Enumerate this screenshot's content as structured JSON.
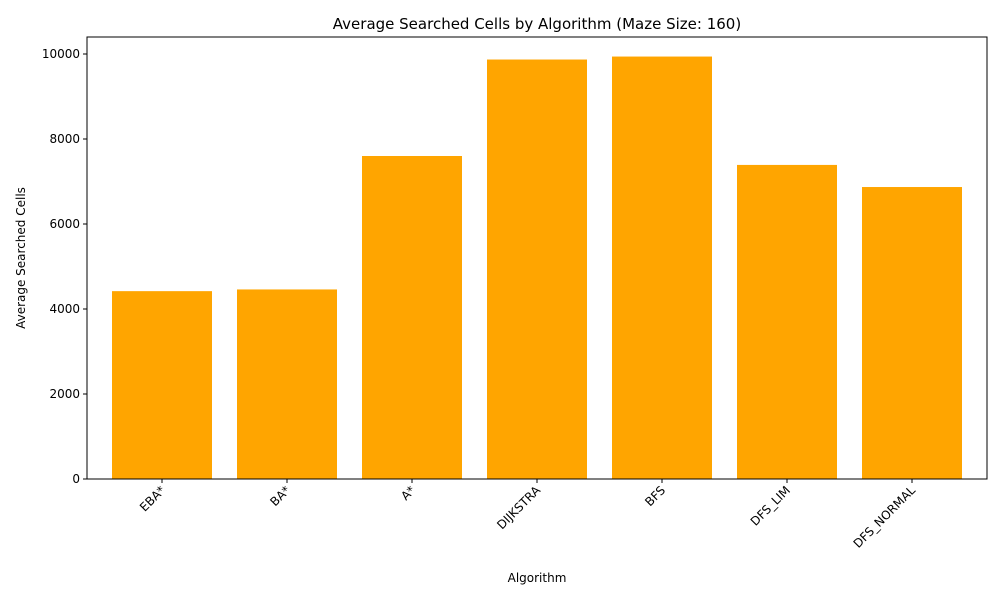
{
  "chart_data": {
    "type": "bar",
    "title": "Average Searched Cells by Algorithm (Maze Size: 160)",
    "xlabel": "Algorithm",
    "ylabel": "Average Searched Cells",
    "categories": [
      "EBA*",
      "BA*",
      "A*",
      "DIJKSTRA",
      "BFS",
      "DFS_LIM",
      "DFS_NORMAL"
    ],
    "values": [
      4420,
      4460,
      7600,
      9870,
      9940,
      7390,
      6870
    ],
    "ylim": [
      0,
      10400
    ],
    "yticks": [
      0,
      2000,
      4000,
      6000,
      8000,
      10000
    ],
    "bar_color": "#ffa500",
    "grid": false,
    "legend": "none"
  }
}
